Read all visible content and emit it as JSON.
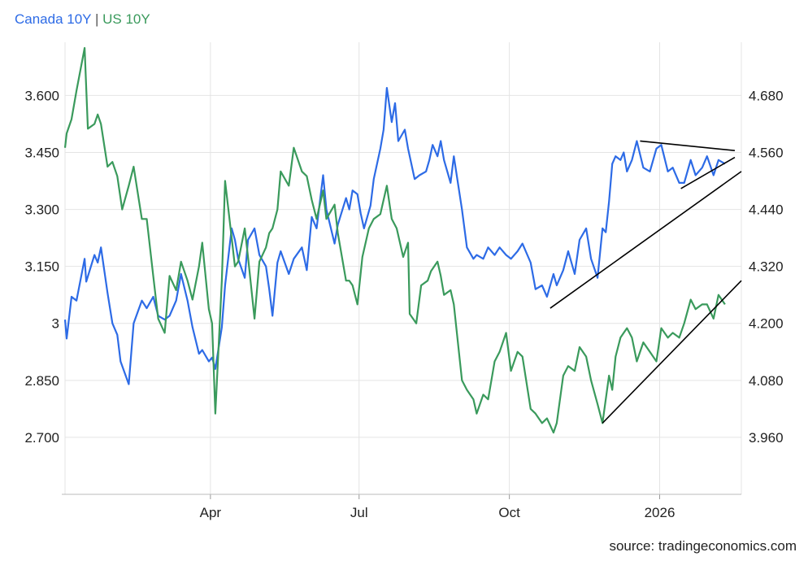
{
  "colors": {
    "canada": "#2d6be6",
    "us": "#3a9a5c",
    "grid": "#e4e4e4",
    "trend": "#000000"
  },
  "legend": {
    "canada": "Canada 10Y",
    "separator": "|",
    "us": "US 10Y"
  },
  "source": "source: tradingeconomics.com",
  "chart_data": {
    "type": "line",
    "title": "",
    "x_tick_labels": [
      "Apr",
      "Jul",
      "Oct",
      "2026"
    ],
    "x_ticks": [
      "2025-04-01",
      "2025-07-01",
      "2025-10-01",
      "2026-01-01"
    ],
    "x_range": [
      "2025-01-02",
      "2026-02-20"
    ],
    "grid": true,
    "legend_placement": "top-left",
    "y_left": {
      "ticks": [
        "3.600",
        "3.450",
        "3.300",
        "3.150",
        "3",
        "2.850",
        "2.700"
      ],
      "values": [
        3.6,
        3.45,
        3.3,
        3.15,
        3.0,
        2.85,
        2.7
      ],
      "range": [
        2.55,
        3.74
      ]
    },
    "y_right": {
      "ticks": [
        "4.680",
        "4.560",
        "4.440",
        "4.320",
        "4.200",
        "4.080",
        "3.960"
      ],
      "values": [
        4.68,
        4.56,
        4.44,
        4.32,
        4.2,
        4.08,
        3.96
      ],
      "range": [
        3.84,
        4.792
      ]
    },
    "series": [
      {
        "name": "Canada 10Y",
        "axis": "left",
        "points": [
          [
            "2025-01-02",
            3.01
          ],
          [
            "2025-01-03",
            2.96
          ],
          [
            "2025-01-06",
            3.07
          ],
          [
            "2025-01-09",
            3.06
          ],
          [
            "2025-01-14",
            3.17
          ],
          [
            "2025-01-15",
            3.11
          ],
          [
            "2025-01-20",
            3.18
          ],
          [
            "2025-01-22",
            3.16
          ],
          [
            "2025-01-24",
            3.2
          ],
          [
            "2025-01-28",
            3.08
          ],
          [
            "2025-01-31",
            3.0
          ],
          [
            "2025-02-03",
            2.97
          ],
          [
            "2025-02-05",
            2.9
          ],
          [
            "2025-02-10",
            2.84
          ],
          [
            "2025-02-13",
            3.0
          ],
          [
            "2025-02-18",
            3.06
          ],
          [
            "2025-02-21",
            3.04
          ],
          [
            "2025-02-25",
            3.07
          ],
          [
            "2025-02-28",
            3.02
          ],
          [
            "2025-03-04",
            3.01
          ],
          [
            "2025-03-07",
            3.02
          ],
          [
            "2025-03-11",
            3.06
          ],
          [
            "2025-03-14",
            3.13
          ],
          [
            "2025-03-18",
            3.06
          ],
          [
            "2025-03-21",
            2.99
          ],
          [
            "2025-03-25",
            2.92
          ],
          [
            "2025-03-27",
            2.93
          ],
          [
            "2025-03-31",
            2.9
          ],
          [
            "2025-04-02",
            2.91
          ],
          [
            "2025-04-04",
            2.88
          ],
          [
            "2025-04-08",
            2.99
          ],
          [
            "2025-04-10",
            3.1
          ],
          [
            "2025-04-14",
            3.25
          ],
          [
            "2025-04-16",
            3.22
          ],
          [
            "2025-04-18",
            3.17
          ],
          [
            "2025-04-22",
            3.12
          ],
          [
            "2025-04-24",
            3.22
          ],
          [
            "2025-04-28",
            3.25
          ],
          [
            "2025-05-01",
            3.18
          ],
          [
            "2025-05-05",
            3.15
          ],
          [
            "2025-05-07",
            3.09
          ],
          [
            "2025-05-09",
            3.02
          ],
          [
            "2025-05-12",
            3.16
          ],
          [
            "2025-05-14",
            3.19
          ],
          [
            "2025-05-19",
            3.13
          ],
          [
            "2025-05-22",
            3.17
          ],
          [
            "2025-05-27",
            3.2
          ],
          [
            "2025-05-30",
            3.14
          ],
          [
            "2025-06-02",
            3.28
          ],
          [
            "2025-06-05",
            3.25
          ],
          [
            "2025-06-09",
            3.39
          ],
          [
            "2025-06-11",
            3.3
          ],
          [
            "2025-06-16",
            3.21
          ],
          [
            "2025-06-18",
            3.26
          ],
          [
            "2025-06-23",
            3.33
          ],
          [
            "2025-06-25",
            3.3
          ],
          [
            "2025-06-27",
            3.35
          ],
          [
            "2025-06-30",
            3.34
          ],
          [
            "2025-07-02",
            3.29
          ],
          [
            "2025-07-04",
            3.25
          ],
          [
            "2025-07-08",
            3.31
          ],
          [
            "2025-07-10",
            3.38
          ],
          [
            "2025-07-14",
            3.46
          ],
          [
            "2025-07-16",
            3.51
          ],
          [
            "2025-07-18",
            3.62
          ],
          [
            "2025-07-21",
            3.53
          ],
          [
            "2025-07-23",
            3.58
          ],
          [
            "2025-07-25",
            3.48
          ],
          [
            "2025-07-29",
            3.51
          ],
          [
            "2025-07-31",
            3.46
          ],
          [
            "2025-08-04",
            3.38
          ],
          [
            "2025-08-07",
            3.39
          ],
          [
            "2025-08-11",
            3.4
          ],
          [
            "2025-08-13",
            3.43
          ],
          [
            "2025-08-15",
            3.47
          ],
          [
            "2025-08-18",
            3.44
          ],
          [
            "2025-08-20",
            3.48
          ],
          [
            "2025-08-22",
            3.43
          ],
          [
            "2025-08-26",
            3.37
          ],
          [
            "2025-08-28",
            3.44
          ],
          [
            "2025-09-02",
            3.3
          ],
          [
            "2025-09-05",
            3.2
          ],
          [
            "2025-09-09",
            3.17
          ],
          [
            "2025-09-11",
            3.18
          ],
          [
            "2025-09-15",
            3.17
          ],
          [
            "2025-09-18",
            3.2
          ],
          [
            "2025-09-22",
            3.18
          ],
          [
            "2025-09-25",
            3.2
          ],
          [
            "2025-09-29",
            3.18
          ],
          [
            "2025-10-02",
            3.17
          ],
          [
            "2025-10-06",
            3.19
          ],
          [
            "2025-10-09",
            3.21
          ],
          [
            "2025-10-14",
            3.16
          ],
          [
            "2025-10-17",
            3.09
          ],
          [
            "2025-10-21",
            3.1
          ],
          [
            "2025-10-24",
            3.07
          ],
          [
            "2025-10-28",
            3.13
          ],
          [
            "2025-10-30",
            3.1
          ],
          [
            "2025-11-03",
            3.14
          ],
          [
            "2025-11-06",
            3.19
          ],
          [
            "2025-11-10",
            3.13
          ],
          [
            "2025-11-13",
            3.22
          ],
          [
            "2025-11-17",
            3.25
          ],
          [
            "2025-11-20",
            3.17
          ],
          [
            "2025-11-24",
            3.12
          ],
          [
            "2025-11-27",
            3.25
          ],
          [
            "2025-11-29",
            3.24
          ],
          [
            "2025-12-01",
            3.32
          ],
          [
            "2025-12-03",
            3.42
          ],
          [
            "2025-12-05",
            3.44
          ],
          [
            "2025-12-08",
            3.43
          ],
          [
            "2025-12-10",
            3.45
          ],
          [
            "2025-12-12",
            3.4
          ],
          [
            "2025-12-15",
            3.43
          ],
          [
            "2025-12-18",
            3.48
          ],
          [
            "2025-12-22",
            3.41
          ],
          [
            "2025-12-26",
            3.4
          ],
          [
            "2025-12-30",
            3.46
          ],
          [
            "2026-01-02",
            3.47
          ],
          [
            "2026-01-06",
            3.4
          ],
          [
            "2026-01-09",
            3.41
          ],
          [
            "2026-01-13",
            3.37
          ],
          [
            "2026-01-16",
            3.37
          ],
          [
            "2026-01-20",
            3.43
          ],
          [
            "2026-01-23",
            3.39
          ],
          [
            "2026-01-27",
            3.41
          ],
          [
            "2026-01-30",
            3.44
          ],
          [
            "2026-02-03",
            3.39
          ],
          [
            "2026-02-06",
            3.43
          ],
          [
            "2026-02-10",
            3.42
          ]
        ]
      },
      {
        "name": "US 10Y",
        "axis": "right",
        "points": [
          [
            "2025-01-02",
            4.57
          ],
          [
            "2025-01-03",
            4.6
          ],
          [
            "2025-01-06",
            4.63
          ],
          [
            "2025-01-09",
            4.69
          ],
          [
            "2025-01-14",
            4.78
          ],
          [
            "2025-01-16",
            4.61
          ],
          [
            "2025-01-20",
            4.62
          ],
          [
            "2025-01-22",
            4.64
          ],
          [
            "2025-01-24",
            4.62
          ],
          [
            "2025-01-28",
            4.53
          ],
          [
            "2025-01-31",
            4.54
          ],
          [
            "2025-02-03",
            4.51
          ],
          [
            "2025-02-06",
            4.44
          ],
          [
            "2025-02-10",
            4.49
          ],
          [
            "2025-02-13",
            4.53
          ],
          [
            "2025-02-18",
            4.42
          ],
          [
            "2025-02-21",
            4.42
          ],
          [
            "2025-02-25",
            4.3
          ],
          [
            "2025-02-28",
            4.21
          ],
          [
            "2025-03-04",
            4.18
          ],
          [
            "2025-03-07",
            4.3
          ],
          [
            "2025-03-11",
            4.27
          ],
          [
            "2025-03-14",
            4.33
          ],
          [
            "2025-03-18",
            4.29
          ],
          [
            "2025-03-21",
            4.25
          ],
          [
            "2025-03-25",
            4.32
          ],
          [
            "2025-03-27",
            4.37
          ],
          [
            "2025-03-31",
            4.23
          ],
          [
            "2025-04-02",
            4.2
          ],
          [
            "2025-04-04",
            4.01
          ],
          [
            "2025-04-08",
            4.29
          ],
          [
            "2025-04-10",
            4.5
          ],
          [
            "2025-04-14",
            4.38
          ],
          [
            "2025-04-16",
            4.32
          ],
          [
            "2025-04-18",
            4.33
          ],
          [
            "2025-04-22",
            4.4
          ],
          [
            "2025-04-24",
            4.34
          ],
          [
            "2025-04-28",
            4.21
          ],
          [
            "2025-05-01",
            4.33
          ],
          [
            "2025-05-05",
            4.36
          ],
          [
            "2025-05-07",
            4.39
          ],
          [
            "2025-05-09",
            4.4
          ],
          [
            "2025-05-12",
            4.44
          ],
          [
            "2025-05-14",
            4.52
          ],
          [
            "2025-05-19",
            4.49
          ],
          [
            "2025-05-22",
            4.57
          ],
          [
            "2025-05-27",
            4.52
          ],
          [
            "2025-05-30",
            4.51
          ],
          [
            "2025-06-02",
            4.46
          ],
          [
            "2025-06-05",
            4.42
          ],
          [
            "2025-06-09",
            4.48
          ],
          [
            "2025-06-11",
            4.42
          ],
          [
            "2025-06-16",
            4.45
          ],
          [
            "2025-06-18",
            4.39
          ],
          [
            "2025-06-23",
            4.29
          ],
          [
            "2025-06-25",
            4.29
          ],
          [
            "2025-06-27",
            4.28
          ],
          [
            "2025-06-30",
            4.24
          ],
          [
            "2025-07-03",
            4.34
          ],
          [
            "2025-07-07",
            4.4
          ],
          [
            "2025-07-10",
            4.42
          ],
          [
            "2025-07-14",
            4.43
          ],
          [
            "2025-07-16",
            4.46
          ],
          [
            "2025-07-18",
            4.49
          ],
          [
            "2025-07-21",
            4.42
          ],
          [
            "2025-07-24",
            4.4
          ],
          [
            "2025-07-28",
            4.34
          ],
          [
            "2025-07-31",
            4.37
          ],
          [
            "2025-08-01",
            4.22
          ],
          [
            "2025-08-05",
            4.2
          ],
          [
            "2025-08-08",
            4.28
          ],
          [
            "2025-08-12",
            4.29
          ],
          [
            "2025-08-14",
            4.31
          ],
          [
            "2025-08-18",
            4.33
          ],
          [
            "2025-08-20",
            4.3
          ],
          [
            "2025-08-22",
            4.26
          ],
          [
            "2025-08-26",
            4.27
          ],
          [
            "2025-08-28",
            4.24
          ],
          [
            "2025-09-02",
            4.08
          ],
          [
            "2025-09-05",
            4.06
          ],
          [
            "2025-09-09",
            4.04
          ],
          [
            "2025-09-11",
            4.01
          ],
          [
            "2025-09-15",
            4.05
          ],
          [
            "2025-09-18",
            4.04
          ],
          [
            "2025-09-22",
            4.12
          ],
          [
            "2025-09-25",
            4.14
          ],
          [
            "2025-09-29",
            4.18
          ],
          [
            "2025-10-02",
            4.1
          ],
          [
            "2025-10-06",
            4.14
          ],
          [
            "2025-10-09",
            4.13
          ],
          [
            "2025-10-14",
            4.02
          ],
          [
            "2025-10-17",
            4.01
          ],
          [
            "2025-10-21",
            3.99
          ],
          [
            "2025-10-24",
            4.0
          ],
          [
            "2025-10-28",
            3.97
          ],
          [
            "2025-10-30",
            3.99
          ],
          [
            "2025-11-03",
            4.09
          ],
          [
            "2025-11-06",
            4.11
          ],
          [
            "2025-11-10",
            4.1
          ],
          [
            "2025-11-13",
            4.15
          ],
          [
            "2025-11-17",
            4.13
          ],
          [
            "2025-11-20",
            4.08
          ],
          [
            "2025-11-24",
            4.03
          ],
          [
            "2025-11-27",
            3.99
          ],
          [
            "2025-12-01",
            4.09
          ],
          [
            "2025-12-03",
            4.06
          ],
          [
            "2025-12-05",
            4.13
          ],
          [
            "2025-12-08",
            4.17
          ],
          [
            "2025-12-10",
            4.18
          ],
          [
            "2025-12-12",
            4.19
          ],
          [
            "2025-12-15",
            4.17
          ],
          [
            "2025-12-18",
            4.12
          ],
          [
            "2025-12-22",
            4.16
          ],
          [
            "2025-12-26",
            4.14
          ],
          [
            "2025-12-30",
            4.12
          ],
          [
            "2026-01-02",
            4.19
          ],
          [
            "2026-01-06",
            4.17
          ],
          [
            "2026-01-09",
            4.18
          ],
          [
            "2026-01-13",
            4.17
          ],
          [
            "2026-01-16",
            4.2
          ],
          [
            "2026-01-20",
            4.25
          ],
          [
            "2026-01-23",
            4.23
          ],
          [
            "2026-01-27",
            4.24
          ],
          [
            "2026-01-30",
            4.24
          ],
          [
            "2026-02-03",
            4.21
          ],
          [
            "2026-02-06",
            4.26
          ],
          [
            "2026-02-10",
            4.24
          ]
        ]
      }
    ],
    "annotations": [
      {
        "kind": "trendline",
        "axis": "left",
        "from": [
          "2025-10-26",
          3.04
        ],
        "to": [
          "2026-02-20",
          3.4
        ]
      },
      {
        "kind": "trendline",
        "axis": "left",
        "from": [
          "2025-12-20",
          3.48
        ],
        "to": [
          "2026-02-16",
          3.455
        ]
      },
      {
        "kind": "trendline",
        "axis": "left",
        "from": [
          "2026-01-14",
          3.355
        ],
        "to": [
          "2026-02-16",
          3.437
        ]
      },
      {
        "kind": "trendline",
        "axis": "right",
        "from": [
          "2025-11-27",
          3.99
        ],
        "to": [
          "2026-02-20",
          4.29
        ]
      }
    ]
  }
}
